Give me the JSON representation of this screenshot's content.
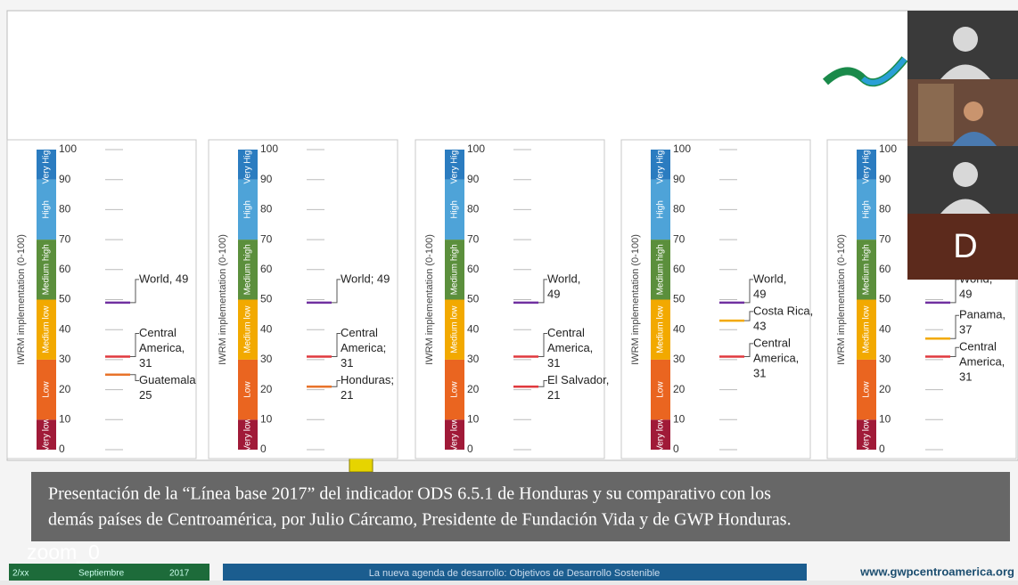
{
  "slide": {
    "axis_label": "IWRM implementation (0-100)",
    "ticks": [
      0,
      10,
      20,
      30,
      40,
      50,
      60,
      70,
      80,
      90,
      100
    ],
    "bands": [
      {
        "label": "Very low",
        "lower": 0,
        "upper": 10,
        "color": "#a01a38"
      },
      {
        "label": "Low",
        "lower": 10,
        "upper": 30,
        "color": "#ea6520"
      },
      {
        "label": "Medium low",
        "lower": 30,
        "upper": 50,
        "color": "#f2a900"
      },
      {
        "label": "Medium high",
        "lower": 50,
        "upper": 70,
        "color": "#5b8f3c"
      },
      {
        "label": "High",
        "lower": 70,
        "upper": 90,
        "color": "#4ea3d8"
      },
      {
        "label": "Very High",
        "lower": 90,
        "upper": 100,
        "color": "#2b7cc0"
      }
    ],
    "panels": [
      {
        "markers": [
          {
            "lines": [
              "World, 49"
            ],
            "value": 49,
            "color": "#7030a0"
          },
          {
            "lines": [
              "Central",
              "America,",
              "31"
            ],
            "value": 31,
            "color": "#e0393e"
          },
          {
            "lines": [
              "Guatemala",
              "25"
            ],
            "value": 25,
            "color": "#e8732a"
          }
        ]
      },
      {
        "markers": [
          {
            "lines": [
              "World; 49"
            ],
            "value": 49,
            "color": "#7030a0"
          },
          {
            "lines": [
              "Central",
              "America;",
              "31"
            ],
            "value": 31,
            "color": "#e0393e"
          },
          {
            "lines": [
              "Honduras;",
              "21"
            ],
            "value": 21,
            "color": "#e8732a"
          }
        ]
      },
      {
        "markers": [
          {
            "lines": [
              "World,",
              "49"
            ],
            "value": 49,
            "color": "#7030a0"
          },
          {
            "lines": [
              "Central",
              "America,",
              "31"
            ],
            "value": 31,
            "color": "#e0393e"
          },
          {
            "lines": [
              "El Salvador,",
              "21"
            ],
            "value": 21,
            "color": "#e0393e"
          }
        ]
      },
      {
        "markers": [
          {
            "lines": [
              "World,",
              "49"
            ],
            "value": 49,
            "color": "#7030a0"
          },
          {
            "lines": [
              "Costa Rica,",
              "43"
            ],
            "value": 43,
            "color": "#f2a900"
          },
          {
            "lines": [
              "Central",
              "America,",
              "31"
            ],
            "value": 31,
            "color": "#e0393e"
          }
        ]
      },
      {
        "markers": [
          {
            "lines": [
              "World,",
              "49"
            ],
            "value": 49,
            "color": "#7030a0"
          },
          {
            "lines": [
              "Panama,",
              "37"
            ],
            "value": 37,
            "color": "#f2a900"
          },
          {
            "lines": [
              "Central",
              "America,",
              "31"
            ],
            "value": 31,
            "color": "#e0393e"
          }
        ]
      }
    ]
  },
  "caption": [
    "Presentación de la “Línea base 2017” del indicador ODS 6.5.1 de Honduras y su comparativo con los",
    "demás países de Centroamérica, por Julio Cárcamo, Presidente de Fundación Vida y de GWP Honduras."
  ],
  "participant_label": "zoom_0",
  "footer": {
    "page": "2/xx",
    "month": "Septiembre",
    "year": "2017",
    "banner": "La nueva agenda de desarrollo: Objetivos de Desarrollo Sostenible",
    "url": "www.gwpcentroamerica.org"
  },
  "video_tiles": {
    "initial": "D"
  }
}
